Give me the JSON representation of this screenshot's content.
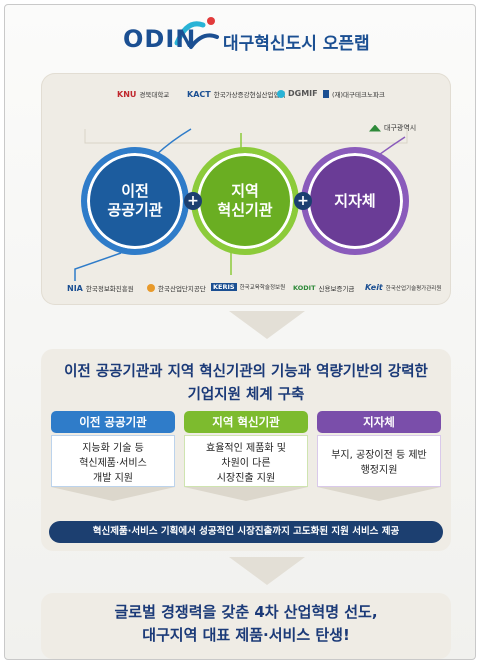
{
  "brand": {
    "logo": "ODIN",
    "title": "대구혁신도시 오픈랩",
    "colors": {
      "navy": "#1b4f92",
      "blue": "#1c5c9e",
      "green": "#6aae22",
      "purple": "#6a3c96",
      "cyan": "#29b3d6",
      "red": "#e23b3b"
    }
  },
  "partners_top": [
    {
      "mark": "KNU",
      "name": "경북대학교"
    },
    {
      "mark": "KACT",
      "name": "한국가상증강현실산업협회"
    },
    {
      "mark": "DGMIF",
      "name": ""
    },
    {
      "mark": "",
      "name": "(재)대구테크노파크"
    }
  ],
  "partner_right": {
    "name": "대구광역시"
  },
  "partners_bottom": [
    {
      "mark": "NIA",
      "name": "한국정보화진흥원"
    },
    {
      "mark": "",
      "name": "한국산업단지공단"
    },
    {
      "mark": "KERIS",
      "name": "한국교육학술정보원"
    },
    {
      "mark": "KODIT",
      "name": "신용보증기금"
    },
    {
      "mark": "Keit",
      "name": "한국산업기술평가관리원"
    }
  ],
  "circles": [
    {
      "line1": "이전",
      "line2": "공공기관"
    },
    {
      "line1": "지역",
      "line2": "혁신기관"
    },
    {
      "line1": "지자체",
      "line2": ""
    }
  ],
  "plus_symbol": "+",
  "headline": {
    "line1": "이전 공공기관과 지역 혁신기관의 기능과 역량기반의 강력한",
    "line2": "기업지원 체계 구축"
  },
  "columns": [
    {
      "title": "이전 공공기관",
      "line1": "지능화 기술 등",
      "line2": "혁신제품·서비스",
      "line3": "개발 지원"
    },
    {
      "title": "지역 혁신기관",
      "line1": "효율적인 제품화 및",
      "line2": "차원이 다른",
      "line3": "시장진출 지원"
    },
    {
      "title": "지자체",
      "line1": "부지, 공장이전 등 제반",
      "line2": "행정지원",
      "line3": ""
    }
  ],
  "service_bar": "혁신제품·서비스 기획에서 성공적인 시장진출까지 고도화된 지원 서비스 제공",
  "final": {
    "line1": "글로벌 경쟁력을 갖춘 4차 산업혁명 선도,",
    "line2": "대구지역 대표 제품·서비스 탄생!"
  }
}
